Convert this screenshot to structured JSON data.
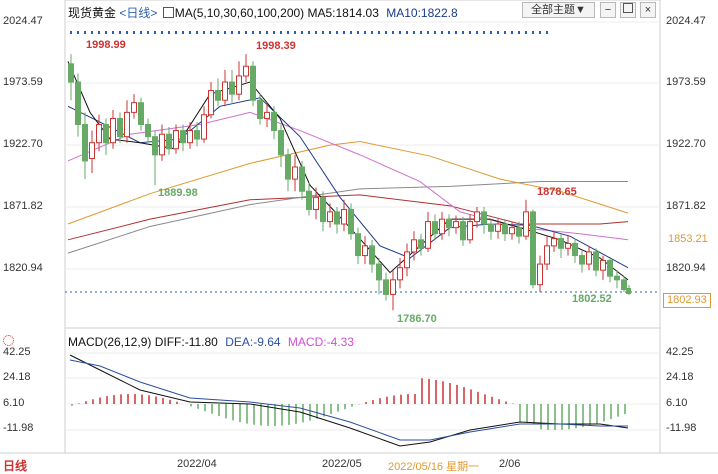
{
  "header": {
    "instrument": "现货黄金",
    "period_tag": "<日线>",
    "ma_label": "MA(5,10,30,60,100,200)",
    "ma5": "MA5:1814.03",
    "ma10": "MA10:1822.8",
    "theme_button": "全部主题▼"
  },
  "price_axis": {
    "left": [
      "2024.47",
      "1973.59",
      "1922.70",
      "1871.82",
      "1820.94"
    ],
    "right": [
      "2024.47",
      "1973.59",
      "1922.70",
      "1871.82",
      "1820.94"
    ],
    "current_price": "1802.93",
    "marker_price": "1853.21"
  },
  "annotations": {
    "high1": "1998.99",
    "high2": "1998.39",
    "low1": "1889.98",
    "high3": "1878.65",
    "low2": "1786.70",
    "low3": "1802.52"
  },
  "macd": {
    "label": "MACD(26,12,9)",
    "diff": "DIFF:-11.80",
    "dea": "DEA:-9.64",
    "macd": "MACD:-4.33",
    "axis_left": [
      "42.25",
      "24.18",
      "6.10",
      "-11.98"
    ],
    "axis_right": [
      "42.25",
      "24.18",
      "6.10",
      "-11.98"
    ]
  },
  "x_axis": {
    "period": "日线",
    "label1": "2022/04",
    "label2": "2022/05",
    "cursor": "2022/05/16 星期一",
    "label3": "2/06"
  },
  "colors": {
    "up": "#cc3333",
    "down": "#66aa66",
    "ma5": "#111111",
    "ma10": "#1a3a8a",
    "ma30": "#d070d0",
    "ma60": "#e09a30",
    "ma100": "#8a8a8a",
    "ma200": "#b03030",
    "axis_blue": "#2b5fb3",
    "macd_diff": "#111111",
    "macd_dea": "#2b4fa0"
  }
}
